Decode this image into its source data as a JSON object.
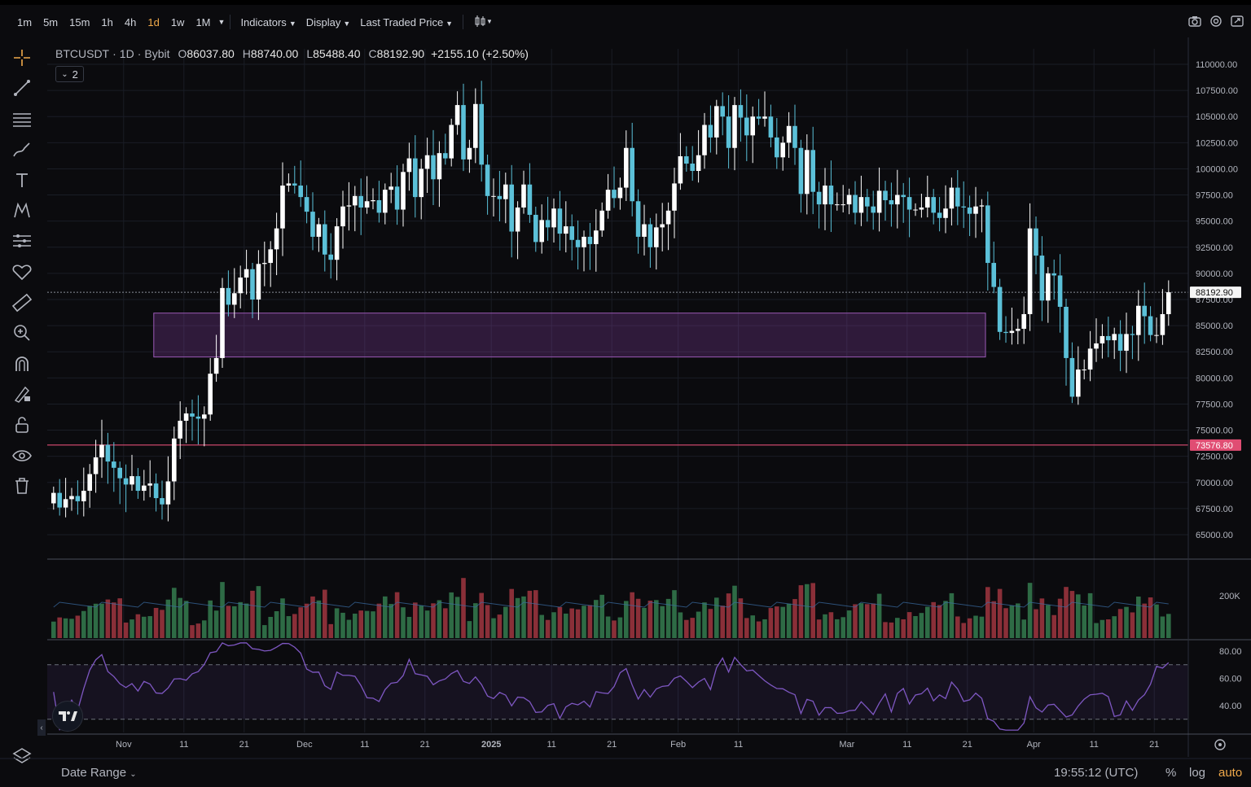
{
  "toolbar": {
    "timeframes": [
      "1m",
      "5m",
      "15m",
      "1h",
      "4h",
      "1d",
      "1w",
      "1M"
    ],
    "active_timeframe": "1d",
    "indicators_label": "Indicators",
    "display_label": "Display",
    "price_source_label": "Last Traded Price"
  },
  "legend": {
    "symbol": "BTCUSDT",
    "interval": "1D",
    "exchange": "Bybit",
    "open_key": "O",
    "open": "86037.80",
    "high_key": "H",
    "high": "88740.00",
    "low_key": "L",
    "low": "85488.40",
    "close_key": "C",
    "close": "88192.90",
    "change": "+2155.10 (+2.50%)",
    "collapsed_count": "2"
  },
  "bottom": {
    "date_range_label": "Date Range",
    "clock": "19:55:12 (UTC)",
    "pct_label": "%",
    "log_label": "log",
    "auto_label": "auto"
  },
  "colors": {
    "up": "#ffffff",
    "down": "#5bc0d8",
    "zone": "#8e44ad",
    "support": "#e04d73",
    "rsi": "#7e57c2"
  },
  "icons": [
    "crosshair-icon",
    "trendline-icon",
    "horizontal-lines-icon",
    "brush-icon",
    "text-icon",
    "pattern-icon",
    "measure-settings-icon",
    "favorite-icon",
    "ruler-icon",
    "zoom-icon",
    "magnet-icon",
    "lock-drawing-icon",
    "unlock-icon",
    "eye-icon",
    "trash-icon",
    "layers-icon"
  ],
  "chart_data": {
    "type": "candlestick",
    "symbol": "BTCUSDT",
    "y_ticks": [
      "110000.00",
      "107500.00",
      "105000.00",
      "102500.00",
      "100000.00",
      "97500.00",
      "95000.00",
      "92500.00",
      "90000.00",
      "87500.00",
      "85000.00",
      "82500.00",
      "80000.00",
      "77500.00",
      "75000.00",
      "72500.00",
      "70000.00",
      "67500.00",
      "65000.00"
    ],
    "x_ticks": [
      "Nov",
      "11",
      "21",
      "Dec",
      "11",
      "21",
      "2025",
      "11",
      "21",
      "Feb",
      "11",
      "Mar",
      "11",
      "21",
      "Apr",
      "11",
      "21"
    ],
    "ylim": [
      63500,
      111500
    ],
    "last_price": "88192.90",
    "support_price": "73576.80",
    "zone": {
      "start": "2024-11-06",
      "end": "2025-03-24",
      "low": 82000,
      "high": 86200
    },
    "closes": [
      69000,
      67600,
      68400,
      68700,
      68200,
      69200,
      70800,
      72400,
      73600,
      72000,
      71400,
      70400,
      69800,
      70600,
      69200,
      69700,
      69900,
      68500,
      67900,
      70100,
      74200,
      75900,
      76600,
      76300,
      76100,
      76500,
      80400,
      81900,
      88600,
      87000,
      88100,
      89600,
      90400,
      87500,
      90900,
      91000,
      92300,
      94300,
      98400,
      98600,
      98400,
      97300,
      95900,
      93500,
      94700,
      91800,
      91300,
      94500,
      96400,
      96500,
      97400,
      96300,
      96900,
      97000,
      95800,
      98000,
      98300,
      96100,
      99700,
      101000,
      97300,
      100000,
      101300,
      99000,
      101500,
      101000,
      104200,
      106100,
      100900,
      102000,
      106200,
      100400,
      97400,
      97400,
      97100,
      98500,
      94000,
      96300,
      98500,
      95600,
      93000,
      95100,
      94400,
      96200,
      93800,
      94500,
      93200,
      92500,
      93500,
      92800,
      94100,
      96000,
      98000,
      97200,
      98200,
      102000,
      96900,
      93500,
      94700,
      92500,
      94400,
      94700,
      96000,
      98600,
      101200,
      100500,
      99800,
      101300,
      104200,
      103000,
      106000,
      105000,
      102000,
      106100,
      104900,
      103200,
      105000,
      104800,
      105000,
      103000,
      101100,
      102500,
      104100,
      102000,
      97600,
      101800,
      97800,
      96600,
      98400,
      96600,
      96600,
      96600,
      97500,
      95800,
      97300,
      96400,
      95800,
      97900,
      97000,
      96600,
      97500,
      97300,
      96100,
      96100,
      96300,
      97300,
      95800,
      95300,
      96200,
      98200,
      96400,
      96300,
      95700,
      96400,
      96500,
      91000,
      88700,
      84400,
      84300,
      84500,
      84700,
      86100,
      94300,
      91700,
      87400,
      90000,
      89800,
      86800,
      81900,
      78200,
      80800,
      80800,
      82800,
      83300,
      84000,
      83600,
      84200,
      82600,
      84200,
      84100,
      86900,
      85900,
      84100,
      84100,
      86100,
      88192.9
    ],
    "volume_scale": "200K",
    "rsi_levels": [
      70,
      30
    ],
    "rsi_ticks": [
      "80.00",
      "60.00",
      "40.00"
    ]
  }
}
